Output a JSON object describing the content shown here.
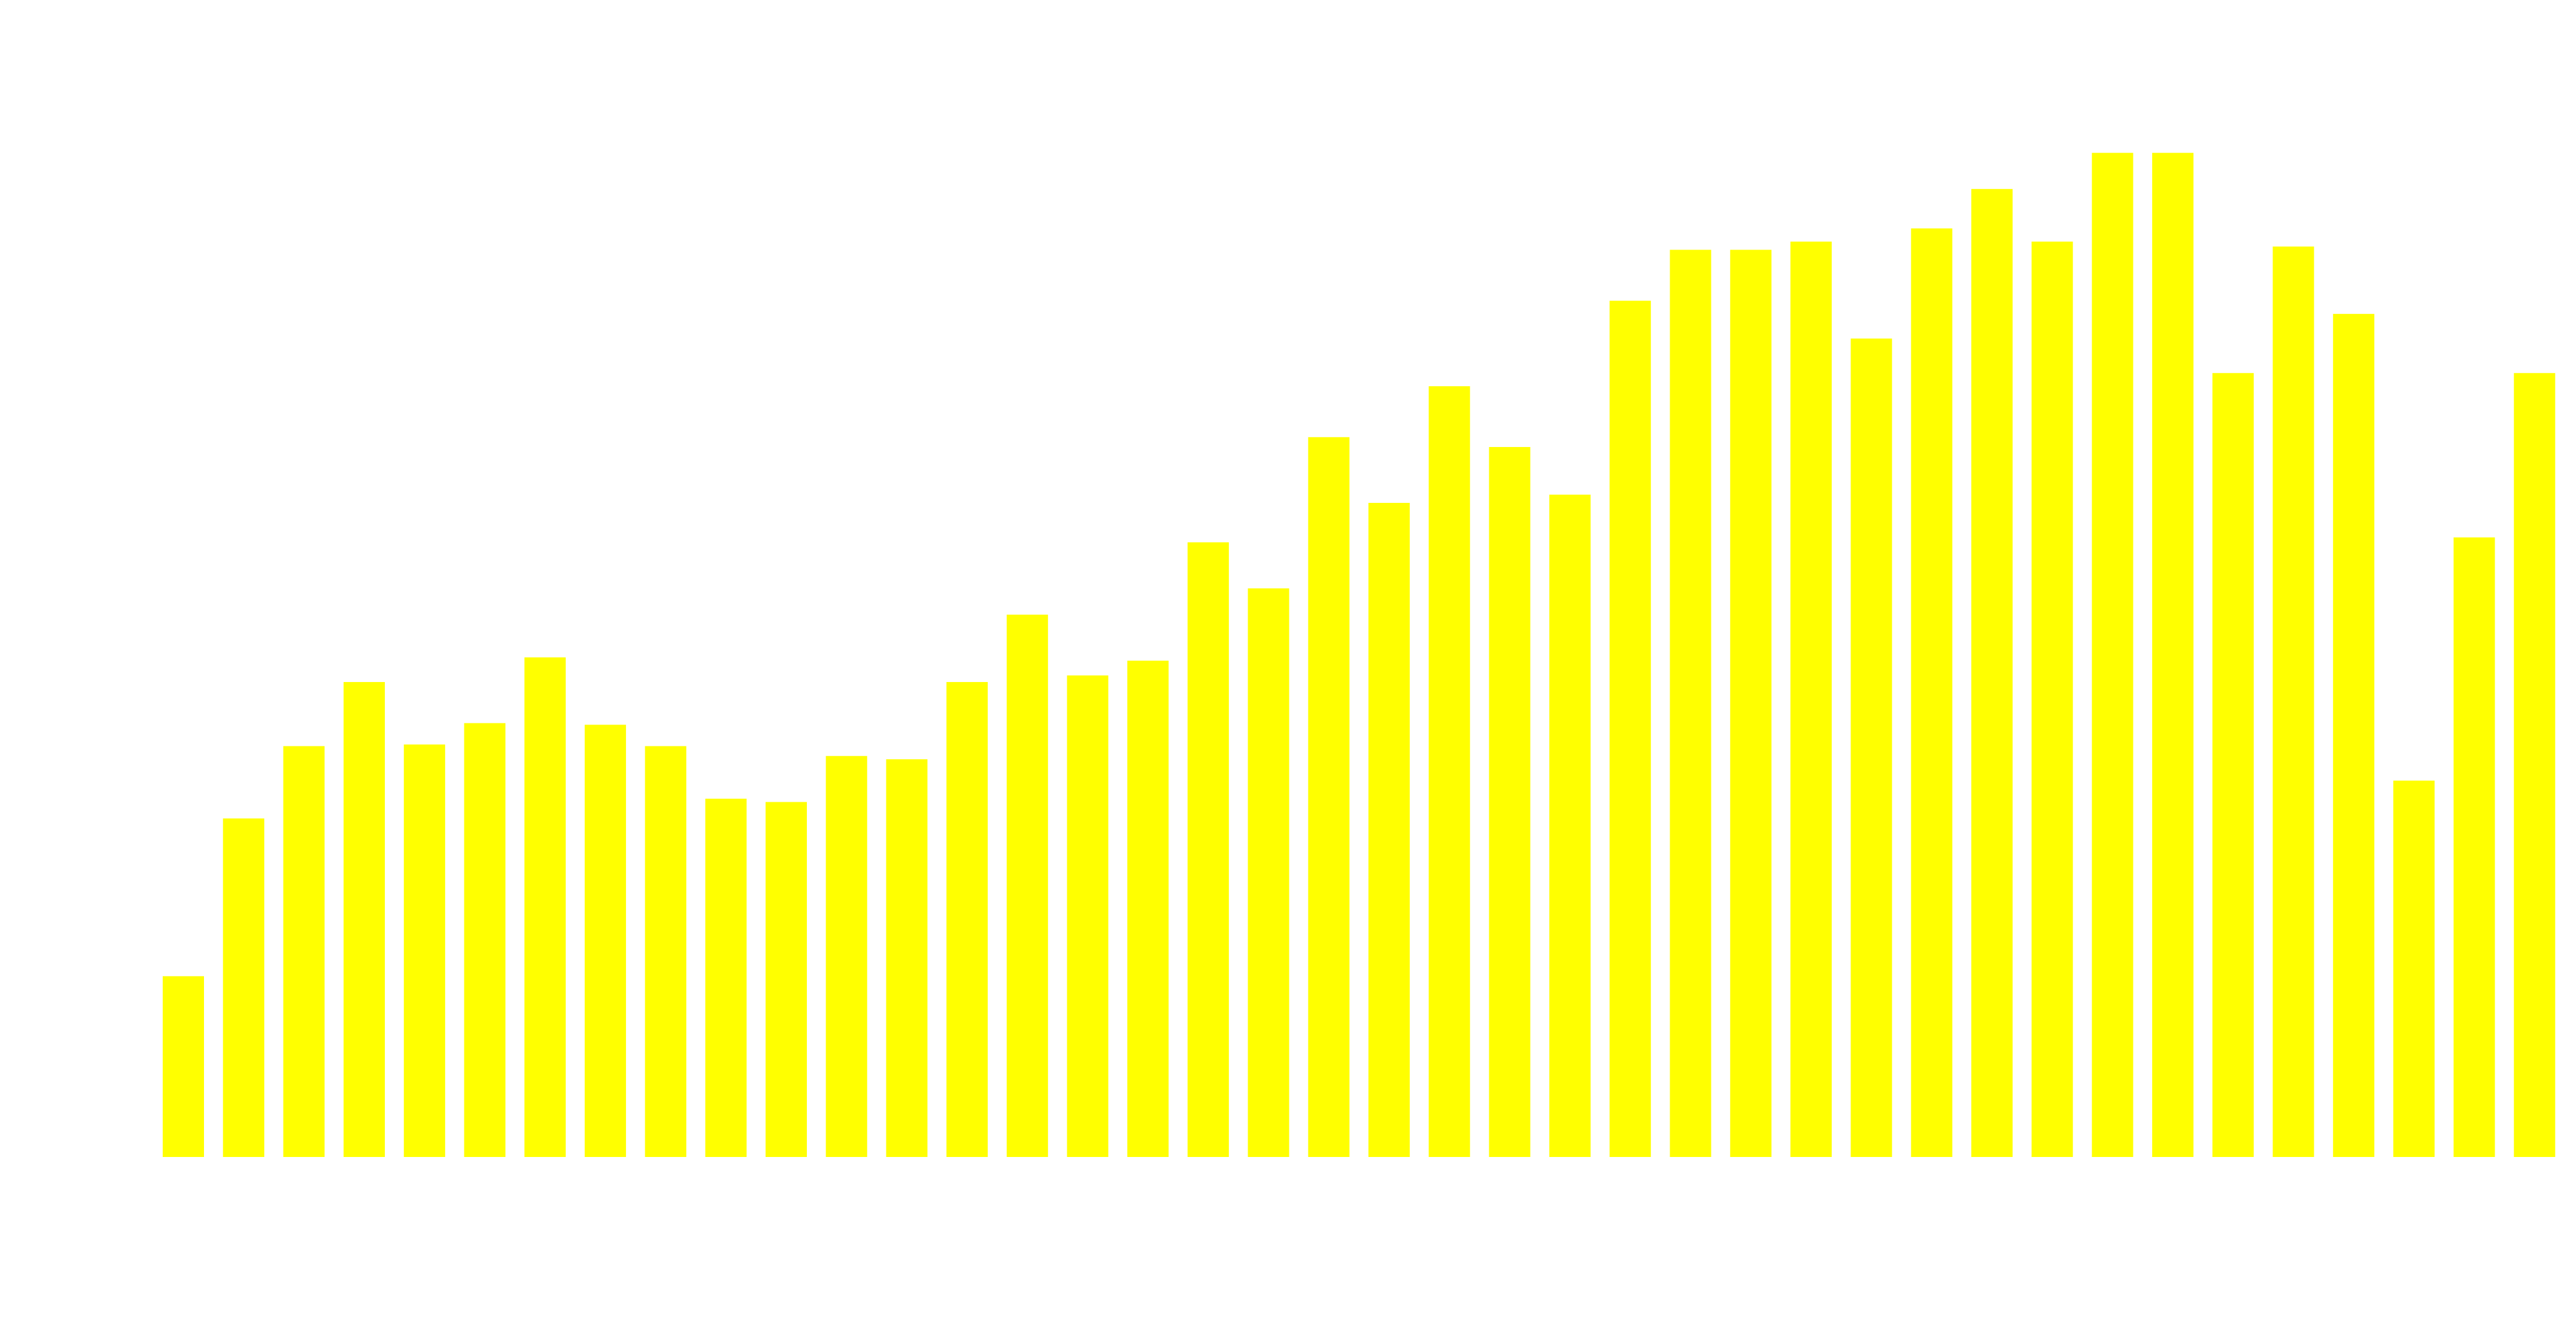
{
  "chart_data": {
    "type": "bar",
    "color": "#ffff00",
    "values": [
      110,
      206,
      250,
      289,
      251,
      264,
      304,
      263,
      250,
      218,
      216,
      244,
      242,
      289,
      330,
      293,
      302,
      374,
      346,
      438,
      398,
      469,
      432,
      403,
      521,
      552,
      552,
      557,
      498,
      565,
      589,
      557,
      611,
      611,
      477,
      554,
      513,
      229,
      377,
      477
    ],
    "ylim": [
      0,
      704
    ]
  }
}
